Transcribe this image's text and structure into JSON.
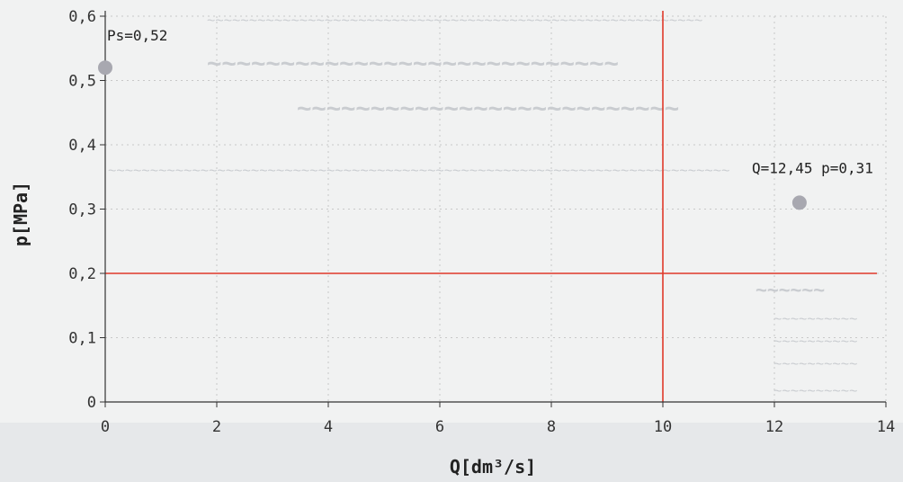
{
  "chart_data": {
    "type": "scatter",
    "title": "",
    "xlabel": "Q[dm³/s]",
    "ylabel": "p[MPa]",
    "xlim": [
      0,
      14
    ],
    "ylim": [
      0,
      0.6
    ],
    "x_ticks": [
      0,
      2,
      4,
      6,
      8,
      10,
      12,
      14
    ],
    "y_ticks": [
      0,
      0.1,
      0.2,
      0.3,
      0.4,
      0.5,
      0.6
    ],
    "x_tick_labels": [
      "0",
      "2",
      "4",
      "6",
      "8",
      "10",
      "12",
      "14"
    ],
    "y_tick_labels": [
      "0",
      "0,1",
      "0,2",
      "0,3",
      "0,4",
      "0,5",
      "0,6"
    ],
    "grid": true,
    "points": [
      {
        "x": 0,
        "y": 0.52,
        "label": "Ps=0,52"
      },
      {
        "x": 12.45,
        "y": 0.31,
        "label": "Q=12,45 p=0,31"
      }
    ],
    "reference_lines": [
      {
        "orientation": "horizontal",
        "value": 0.2
      },
      {
        "orientation": "vertical",
        "value": 10
      }
    ],
    "colors": {
      "point": "#a8a8b0",
      "reference_line": "#e0392a",
      "axis": "#333333",
      "grid": "#c8c8c8"
    }
  }
}
